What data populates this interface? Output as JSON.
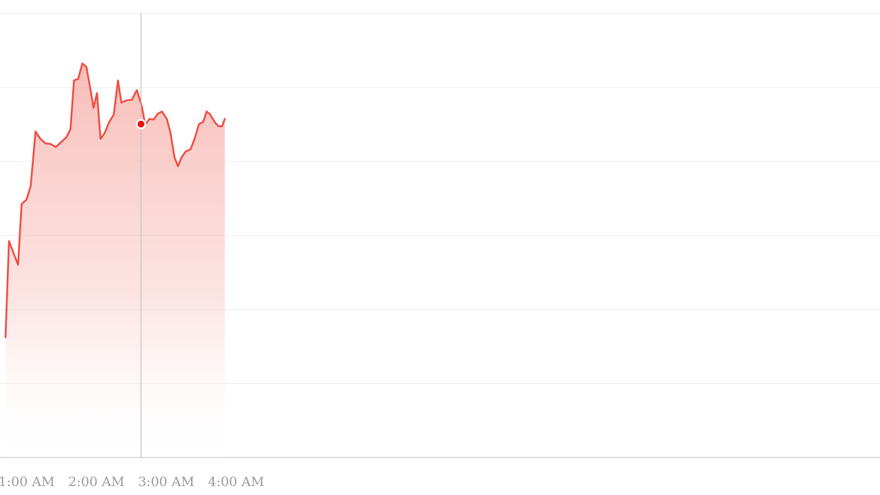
{
  "chart_data": {
    "type": "area",
    "title": "",
    "xlabel": "",
    "ylabel": "",
    "x_ticks": [
      {
        "label": "1:00 AM",
        "x": 1.0
      },
      {
        "label": "2:00 AM",
        "x": 2.0
      },
      {
        "label": "3:00 AM",
        "x": 3.0
      },
      {
        "label": "4:00 AM",
        "x": 4.0
      }
    ],
    "xlim": [
      0.62,
      13.2
    ],
    "ylim": [
      0,
      6
    ],
    "y_gridlines": [
      0,
      1,
      2,
      3,
      4,
      5,
      6
    ],
    "grid": "horizontal",
    "series": [
      {
        "color": "#f04b40",
        "fill_color": "#f6a7a0",
        "points": [
          [
            0.62,
            1.62
          ],
          [
            0.67,
            2.92
          ],
          [
            0.75,
            2.72
          ],
          [
            0.8,
            2.6
          ],
          [
            0.85,
            3.42
          ],
          [
            0.92,
            3.48
          ],
          [
            0.98,
            3.66
          ],
          [
            1.05,
            4.4
          ],
          [
            1.12,
            4.3
          ],
          [
            1.19,
            4.24
          ],
          [
            1.27,
            4.23
          ],
          [
            1.34,
            4.19
          ],
          [
            1.41,
            4.25
          ],
          [
            1.49,
            4.32
          ],
          [
            1.55,
            4.43
          ],
          [
            1.6,
            5.09
          ],
          [
            1.66,
            5.11
          ],
          [
            1.72,
            5.32
          ],
          [
            1.78,
            5.27
          ],
          [
            1.84,
            4.95
          ],
          [
            1.88,
            4.72
          ],
          [
            1.93,
            4.92
          ],
          [
            1.98,
            4.3
          ],
          [
            2.04,
            4.38
          ],
          [
            2.1,
            4.52
          ],
          [
            2.17,
            4.63
          ],
          [
            2.23,
            5.09
          ],
          [
            2.28,
            4.79
          ],
          [
            2.35,
            4.82
          ],
          [
            2.43,
            4.83
          ],
          [
            2.5,
            4.96
          ],
          [
            2.57,
            4.75
          ],
          [
            2.62,
            4.49
          ],
          [
            2.68,
            4.57
          ],
          [
            2.74,
            4.56
          ],
          [
            2.8,
            4.64
          ],
          [
            2.86,
            4.67
          ],
          [
            2.93,
            4.57
          ],
          [
            2.98,
            4.39
          ],
          [
            3.04,
            4.05
          ],
          [
            3.09,
            3.93
          ],
          [
            3.14,
            4.05
          ],
          [
            3.2,
            4.13
          ],
          [
            3.27,
            4.16
          ],
          [
            3.33,
            4.31
          ],
          [
            3.39,
            4.5
          ],
          [
            3.45,
            4.53
          ],
          [
            3.5,
            4.67
          ],
          [
            3.55,
            4.63
          ],
          [
            3.62,
            4.52
          ],
          [
            3.67,
            4.47
          ],
          [
            3.72,
            4.47
          ],
          [
            3.76,
            4.57
          ]
        ]
      }
    ],
    "hover": {
      "x": 2.56,
      "y": 4.5
    }
  }
}
